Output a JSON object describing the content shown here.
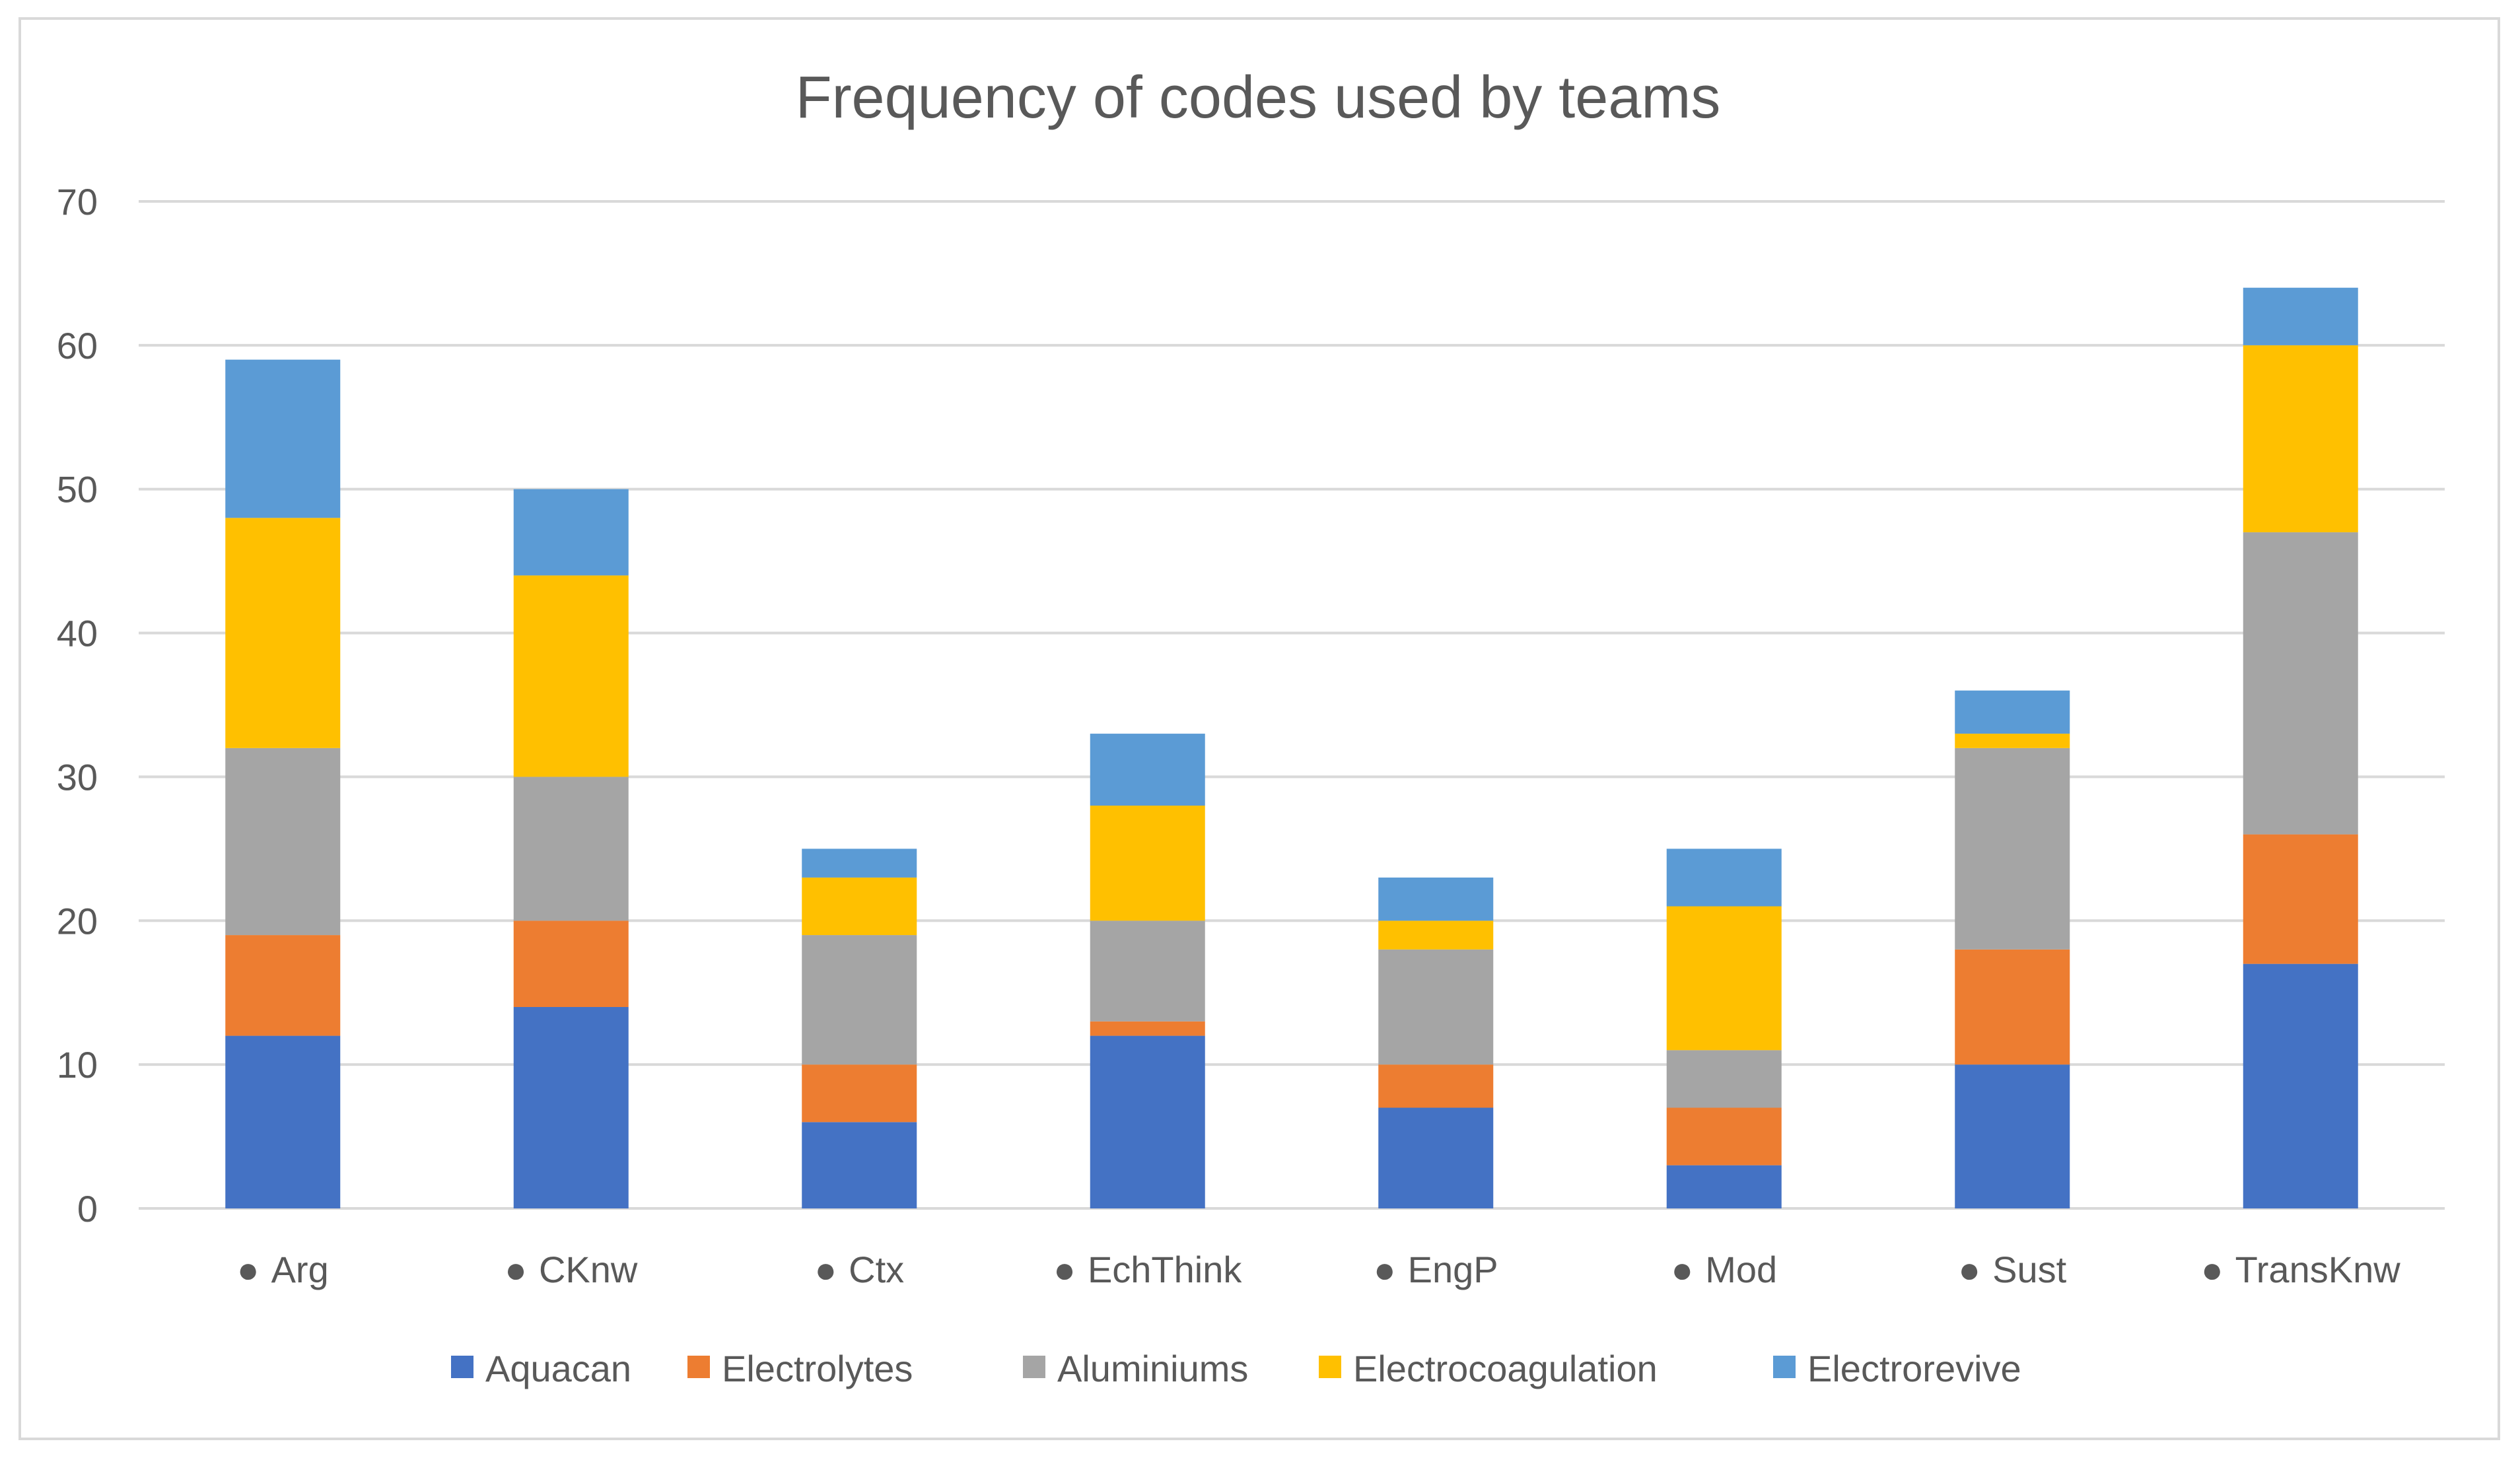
{
  "chart_data": {
    "type": "bar",
    "stacked": true,
    "title": "Frequency of codes used by teams",
    "xlabel": "",
    "ylabel": "",
    "ylim": [
      0,
      70
    ],
    "yticks": [
      0,
      10,
      20,
      30,
      40,
      50,
      60,
      70
    ],
    "grid": true,
    "legend_position": "bottom",
    "category_marker": "●",
    "categories": [
      "Arg",
      "CKnw",
      "Ctx",
      "EchThink",
      "EngP",
      "Mod",
      "Sust",
      "TransKnw"
    ],
    "series": [
      {
        "name": "Aquacan",
        "color": "#4472c4",
        "values": [
          12,
          14,
          6,
          12,
          7,
          3,
          10,
          17
        ]
      },
      {
        "name": "Electrolytes",
        "color": "#ed7d31",
        "values": [
          7,
          6,
          4,
          1,
          3,
          4,
          8,
          9
        ]
      },
      {
        "name": "Aluminiums",
        "color": "#a5a5a5",
        "values": [
          13,
          10,
          9,
          7,
          8,
          4,
          14,
          21
        ]
      },
      {
        "name": "Electrocoagulation",
        "color": "#ffc000",
        "values": [
          16,
          14,
          4,
          8,
          2,
          10,
          1,
          13
        ]
      },
      {
        "name": "Electrorevive",
        "color": "#5b9bd5",
        "values": [
          11,
          6,
          2,
          5,
          3,
          4,
          3,
          4
        ]
      }
    ]
  }
}
